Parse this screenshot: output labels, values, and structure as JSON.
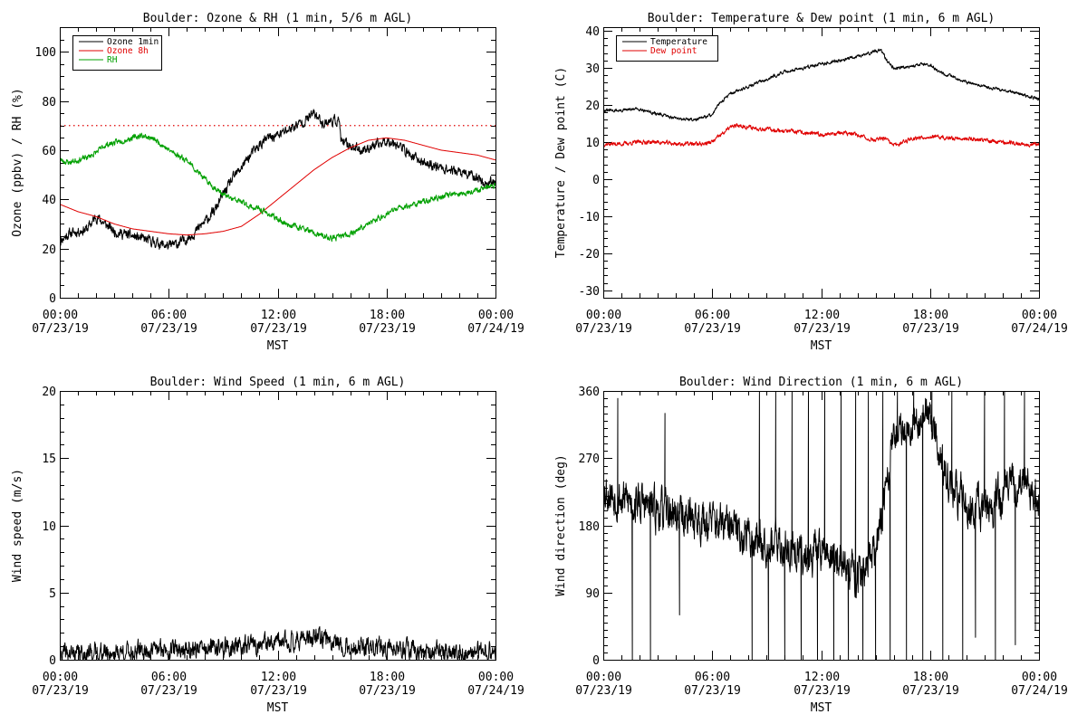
{
  "figure": {
    "colors": {
      "axis": "#000000",
      "black": "#000000",
      "red": "#e00000",
      "green": "#00a000"
    }
  },
  "chart_data": [
    {
      "id": "ozone_rh",
      "type": "line",
      "title": "Boulder: Ozone & RH (1 min, 5/6 m AGL)",
      "xlabel": "MST",
      "ylabel": "Ozone (ppbv) / RH (%)",
      "xlim": [
        0,
        24
      ],
      "ylim": [
        0,
        110
      ],
      "x_ticks": [
        {
          "v": 0,
          "l1": "00:00",
          "l2": "07/23/19"
        },
        {
          "v": 6,
          "l1": "06:00",
          "l2": "07/23/19"
        },
        {
          "v": 12,
          "l1": "12:00",
          "l2": "07/23/19"
        },
        {
          "v": 18,
          "l1": "18:00",
          "l2": "07/23/19"
        },
        {
          "v": 24,
          "l1": "00:00",
          "l2": "07/24/19"
        }
      ],
      "y_ticks": [
        0,
        20,
        40,
        60,
        80,
        100
      ],
      "minor_x": 1,
      "minor_y": 5,
      "legend_position": "top-left",
      "hlines": [
        {
          "y": 70,
          "color": "#e00000",
          "style": "dotted"
        }
      ],
      "series": [
        {
          "name": "Ozone 1min",
          "color": "#000000",
          "noise": 1.6,
          "seed": 11,
          "x": [
            0,
            0.5,
            1,
            1.5,
            2,
            2.5,
            3,
            3.5,
            4,
            4.5,
            5,
            5.5,
            6,
            6.5,
            7,
            7.5,
            8,
            8.5,
            9,
            9.5,
            10,
            10.5,
            11,
            11.5,
            12,
            12.5,
            13,
            13.5,
            14,
            14.5,
            15,
            15.4,
            15.5,
            16,
            16.5,
            17,
            17.5,
            18,
            18.5,
            19,
            19.5,
            20,
            20.5,
            21,
            21.5,
            22,
            22.5,
            23,
            23.5,
            24
          ],
          "y": [
            23,
            26,
            27,
            28,
            33,
            30,
            27,
            26,
            25,
            24,
            23,
            22,
            21,
            22,
            24,
            27,
            31,
            35,
            42,
            48,
            53,
            58,
            62,
            65,
            66,
            68,
            70,
            72,
            75,
            71,
            72,
            72,
            63,
            62,
            60,
            61,
            62,
            64,
            63,
            60,
            57,
            55,
            54,
            53,
            52,
            51,
            50,
            49,
            46,
            48
          ]
        },
        {
          "name": "Ozone 8h",
          "color": "#e00000",
          "noise": 0,
          "seed": 0,
          "x": [
            0,
            1,
            2,
            3,
            4,
            5,
            6,
            7,
            8,
            9,
            10,
            11,
            12,
            13,
            14,
            15,
            16,
            17,
            18,
            19,
            20,
            21,
            22,
            23,
            24
          ],
          "y": [
            38,
            35,
            33,
            30,
            28,
            27,
            26,
            25.5,
            26,
            27,
            29,
            34,
            40,
            46,
            52,
            57,
            61,
            64,
            65,
            64,
            62,
            60,
            59,
            58,
            56
          ]
        },
        {
          "name": "RH",
          "color": "#00a000",
          "noise": 0.9,
          "seed": 23,
          "x": [
            0,
            0.5,
            1,
            1.5,
            2,
            2.5,
            3,
            3.5,
            4,
            4.5,
            5,
            5.5,
            6,
            6.5,
            7,
            7.5,
            8,
            8.5,
            9,
            9.5,
            10,
            10.5,
            11,
            11.5,
            12,
            12.5,
            13,
            13.5,
            14,
            14.5,
            15,
            15.5,
            16,
            16.5,
            17,
            17.5,
            18,
            18.5,
            19,
            19.5,
            20,
            20.5,
            21,
            21.5,
            22,
            22.5,
            23,
            23.5,
            24
          ],
          "y": [
            56,
            55,
            56,
            57,
            59,
            62,
            63,
            64,
            65,
            66,
            65,
            63,
            60,
            58,
            56,
            52,
            48,
            45,
            42,
            40,
            39,
            37,
            36,
            34,
            32,
            30,
            29,
            28,
            26,
            25,
            24,
            25,
            26,
            28,
            30,
            32,
            34,
            36,
            37,
            38,
            39,
            40,
            41,
            42,
            42,
            43,
            44,
            45,
            46
          ]
        }
      ]
    },
    {
      "id": "temp_dew",
      "type": "line",
      "title": "Boulder: Temperature & Dew point (1 min, 6 m AGL)",
      "xlabel": "MST",
      "ylabel": "Temperature / Dew point (C)",
      "xlim": [
        0,
        24
      ],
      "ylim": [
        -32,
        41
      ],
      "x_ticks": [
        {
          "v": 0,
          "l1": "00:00",
          "l2": "07/23/19"
        },
        {
          "v": 6,
          "l1": "06:00",
          "l2": "07/23/19"
        },
        {
          "v": 12,
          "l1": "12:00",
          "l2": "07/23/19"
        },
        {
          "v": 18,
          "l1": "18:00",
          "l2": "07/23/19"
        },
        {
          "v": 24,
          "l1": "00:00",
          "l2": "07/24/19"
        }
      ],
      "y_ticks": [
        -30,
        -20,
        -10,
        0,
        10,
        20,
        30,
        40
      ],
      "minor_x": 1,
      "minor_y": 2,
      "legend_position": "top-left",
      "series": [
        {
          "name": "Temperature",
          "color": "#000000",
          "noise": 0.35,
          "seed": 31,
          "x": [
            0,
            1,
            2,
            3,
            4,
            5,
            5.5,
            6,
            6.5,
            7,
            7.5,
            8,
            8.5,
            9,
            10,
            11,
            12,
            13,
            14,
            15,
            15.3,
            15.6,
            16,
            17,
            17.5,
            18,
            18.5,
            19,
            20,
            21,
            22,
            23,
            24
          ],
          "y": [
            18.5,
            18.5,
            19,
            17.5,
            16.5,
            16,
            16.5,
            17.5,
            21,
            23,
            24,
            25,
            26,
            27,
            29,
            30,
            31,
            32,
            33,
            34.5,
            35,
            32,
            30,
            30.5,
            31,
            31,
            29,
            28,
            26,
            25,
            24,
            23,
            21.5
          ]
        },
        {
          "name": "Dew point",
          "color": "#e00000",
          "noise": 0.45,
          "seed": 37,
          "x": [
            0,
            1,
            2,
            3,
            4,
            5,
            5.5,
            6,
            6.5,
            7,
            7.5,
            8,
            9,
            10,
            11,
            12,
            13,
            14,
            14.5,
            15,
            15.5,
            16,
            16.5,
            17,
            18,
            19,
            20,
            21,
            22,
            23,
            24
          ],
          "y": [
            9.5,
            9.5,
            10,
            10,
            9.5,
            9.5,
            9.5,
            10,
            12,
            14,
            14.5,
            14,
            13.5,
            13,
            12.5,
            12,
            12.5,
            12,
            11,
            10.5,
            11,
            9,
            10,
            11,
            11.5,
            11,
            11,
            10.5,
            10,
            9.5,
            9.5
          ]
        }
      ]
    },
    {
      "id": "wind_speed",
      "type": "line",
      "title": "Boulder: Wind Speed (1 min, 6 m AGL)",
      "xlabel": "MST",
      "ylabel": "Wind speed (m/s)",
      "xlim": [
        0,
        24
      ],
      "ylim": [
        0,
        20
      ],
      "x_ticks": [
        {
          "v": 0,
          "l1": "00:00",
          "l2": "07/23/19"
        },
        {
          "v": 6,
          "l1": "06:00",
          "l2": "07/23/19"
        },
        {
          "v": 12,
          "l1": "12:00",
          "l2": "07/23/19"
        },
        {
          "v": 18,
          "l1": "18:00",
          "l2": "07/23/19"
        },
        {
          "v": 24,
          "l1": "00:00",
          "l2": "07/24/19"
        }
      ],
      "y_ticks": [
        0,
        5,
        10,
        15,
        20
      ],
      "minor_x": 1,
      "minor_y": 1,
      "series": [
        {
          "name": "",
          "color": "#000000",
          "noise": 0.55,
          "seed": 41,
          "clip_min": 0,
          "x": [
            0,
            2,
            4,
            6,
            8,
            10,
            12,
            13,
            14,
            15,
            15.5,
            16,
            18,
            20,
            22,
            24
          ],
          "y": [
            0.4,
            0.5,
            0.6,
            0.8,
            0.8,
            1.0,
            1.2,
            1.5,
            1.6,
            1.5,
            1.2,
            0.9,
            0.8,
            0.7,
            0.5,
            0.5
          ]
        }
      ]
    },
    {
      "id": "wind_dir",
      "type": "line",
      "title": "Boulder: Wind Direction (1 min, 6 m AGL)",
      "xlabel": "MST",
      "ylabel": "Wind direction (deg)",
      "xlim": [
        0,
        24
      ],
      "ylim": [
        0,
        360
      ],
      "x_ticks": [
        {
          "v": 0,
          "l1": "00:00",
          "l2": "07/23/19"
        },
        {
          "v": 6,
          "l1": "06:00",
          "l2": "07/23/19"
        },
        {
          "v": 12,
          "l1": "12:00",
          "l2": "07/23/19"
        },
        {
          "v": 18,
          "l1": "18:00",
          "l2": "07/23/19"
        },
        {
          "v": 24,
          "l1": "00:00",
          "l2": "07/24/19"
        }
      ],
      "y_ticks": [
        0,
        90,
        180,
        270,
        360
      ],
      "minor_x": 1,
      "minor_y": 10,
      "series": [
        {
          "name": "",
          "color": "#000000",
          "noise": 22,
          "seed": 53,
          "clip_min": 0,
          "clip_max": 360,
          "x": [
            0,
            1,
            2,
            3,
            4,
            5,
            6,
            7,
            8,
            9,
            10,
            11,
            12,
            13,
            14,
            15,
            16,
            17,
            18,
            19,
            20,
            21,
            22,
            23,
            24
          ],
          "y": [
            230,
            215,
            210,
            200,
            195,
            190,
            185,
            175,
            165,
            160,
            150,
            140,
            150,
            130,
            110,
            140,
            300,
            320,
            330,
            230,
            210,
            200,
            220,
            240,
            210
          ],
          "spikes": [
            {
              "x": 0.8,
              "y": 350
            },
            {
              "x": 1.6,
              "y": 0
            },
            {
              "x": 2.6,
              "y": 0
            },
            {
              "x": 3.4,
              "y": 330
            },
            {
              "x": 4.2,
              "y": 60
            },
            {
              "x": 8.2,
              "y": 0
            },
            {
              "x": 8.6,
              "y": 360
            },
            {
              "x": 9.1,
              "y": 0
            },
            {
              "x": 9.5,
              "y": 360
            },
            {
              "x": 10.0,
              "y": 0
            },
            {
              "x": 10.4,
              "y": 360
            },
            {
              "x": 10.9,
              "y": 0
            },
            {
              "x": 11.3,
              "y": 360
            },
            {
              "x": 11.8,
              "y": 0
            },
            {
              "x": 12.2,
              "y": 360
            },
            {
              "x": 12.7,
              "y": 0
            },
            {
              "x": 13.1,
              "y": 360
            },
            {
              "x": 13.5,
              "y": 0
            },
            {
              "x": 13.9,
              "y": 360
            },
            {
              "x": 14.3,
              "y": 0
            },
            {
              "x": 14.6,
              "y": 360
            },
            {
              "x": 15.0,
              "y": 0
            },
            {
              "x": 15.4,
              "y": 360
            },
            {
              "x": 15.8,
              "y": 0
            },
            {
              "x": 16.2,
              "y": 360
            },
            {
              "x": 16.7,
              "y": 0
            },
            {
              "x": 17.1,
              "y": 360
            },
            {
              "x": 17.6,
              "y": 0
            },
            {
              "x": 18.1,
              "y": 360
            },
            {
              "x": 18.7,
              "y": 0
            },
            {
              "x": 19.2,
              "y": 360
            },
            {
              "x": 19.8,
              "y": 0
            },
            {
              "x": 20.5,
              "y": 30
            },
            {
              "x": 21.0,
              "y": 360
            },
            {
              "x": 21.6,
              "y": 0
            },
            {
              "x": 22.1,
              "y": 360
            },
            {
              "x": 22.7,
              "y": 20
            },
            {
              "x": 23.2,
              "y": 360
            },
            {
              "x": 23.8,
              "y": 40
            }
          ]
        }
      ]
    }
  ]
}
